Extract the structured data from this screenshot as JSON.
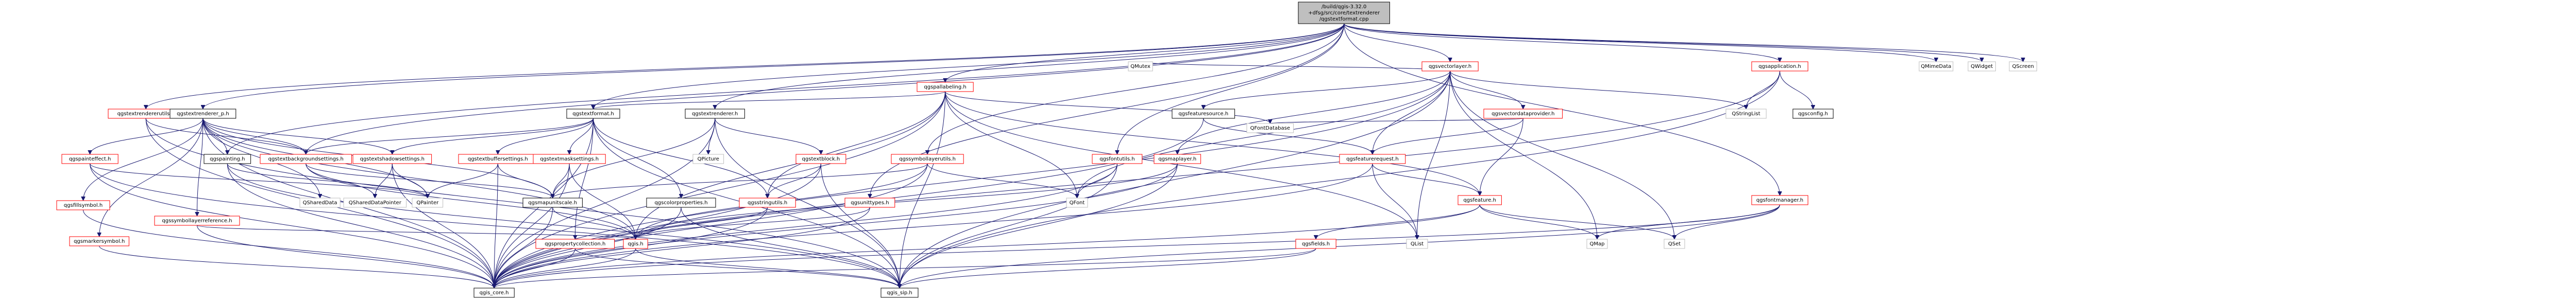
{
  "diagram": {
    "root": {
      "id": "root",
      "lines": [
        "/build/qgis-3.32.0",
        "+dfsg/src/core/textrenderer",
        "/qgstextformat.cpp"
      ],
      "kind": "selected"
    },
    "nodes": [
      {
        "id": "qgstextrendererutils",
        "lines": [
          "qgstextrendererutils.h"
        ],
        "kind": "red"
      },
      {
        "id": "qgstextrenderer_p",
        "lines": [
          "qgstextrenderer_p.h"
        ],
        "kind": "plain"
      },
      {
        "id": "qgstextformat_h",
        "lines": [
          "qgstextformat.h"
        ],
        "kind": "plain"
      },
      {
        "id": "qgstextrenderer_h",
        "lines": [
          "qgstextrenderer.h"
        ],
        "kind": "plain"
      },
      {
        "id": "qgspallabeling",
        "lines": [
          "qgspallabeling.h"
        ],
        "kind": "red"
      },
      {
        "id": "qgsvectorlayer",
        "lines": [
          "qgsvectorlayer.h"
        ],
        "kind": "red"
      },
      {
        "id": "qgsapplication",
        "lines": [
          "qgsapplication.h"
        ],
        "kind": "red"
      },
      {
        "id": "qgspainteffect",
        "lines": [
          "qgspainteffect.h"
        ],
        "kind": "red"
      },
      {
        "id": "qgsfillsymbol",
        "lines": [
          "qgsfillsymbol.h"
        ],
        "kind": "red"
      },
      {
        "id": "qgsmarkersymbol",
        "lines": [
          "qgsmarkersymbol.h"
        ],
        "kind": "red"
      },
      {
        "id": "qgspainting",
        "lines": [
          "qgspainting.h"
        ],
        "kind": "plain"
      },
      {
        "id": "qgssymbollayerreference",
        "lines": [
          "qgssymbollayerreference.h"
        ],
        "kind": "red"
      },
      {
        "id": "qgstextbackgroundsettings",
        "lines": [
          "qgstextbackgroundsettings.h"
        ],
        "kind": "red"
      },
      {
        "id": "qgstextshadowsettings",
        "lines": [
          "qgstextshadowsettings.h"
        ],
        "kind": "red"
      },
      {
        "id": "qgstextbuffersettings",
        "lines": [
          "qgstextbuffersettings.h"
        ],
        "kind": "red"
      },
      {
        "id": "qgstextmasksettings",
        "lines": [
          "qgstextmasksettings.h"
        ],
        "kind": "red"
      },
      {
        "id": "qgscoordinatetransform",
        "lines": [
          "QPicture"
        ],
        "kind": "grey"
      },
      {
        "id": "qgstextblock",
        "lines": [
          "qgstextblock.h"
        ],
        "kind": "red"
      },
      {
        "id": "qgssymbollayerutils",
        "lines": [
          "qgssymbollayerutils.h"
        ],
        "kind": "red"
      },
      {
        "id": "qgsfontutils",
        "lines": [
          "qgsfontutils.h"
        ],
        "kind": "red"
      },
      {
        "id": "qgsmaplayer",
        "lines": [
          "qgsmaplayer.h"
        ],
        "kind": "red"
      },
      {
        "id": "qgsfeaturesource",
        "lines": [
          "qgsfeaturesource.h"
        ],
        "kind": "plain"
      },
      {
        "id": "qgsvectordataprovider",
        "lines": [
          "qgsvectordataprovider.h"
        ],
        "kind": "red"
      },
      {
        "id": "qgsfeaturerequest",
        "lines": [
          "qgsfeaturerequest.h"
        ],
        "kind": "red"
      },
      {
        "id": "qgsfeature",
        "lines": [
          "qgsfeature.h"
        ],
        "kind": "red"
      },
      {
        "id": "qgsfontmanager",
        "lines": [
          "qgsfontmanager.h"
        ],
        "kind": "red"
      },
      {
        "id": "qgsconfig",
        "lines": [
          "qgsconfig.h"
        ],
        "kind": "plain"
      },
      {
        "id": "qgscoreproperties",
        "lines": [
          "qgscolorproperties.h"
        ],
        "kind": "plain"
      },
      {
        "id": "qgsmapunitscale",
        "lines": [
          "qgsmapunitscale.h"
        ],
        "kind": "plain"
      },
      {
        "id": "qgsstringutils",
        "lines": [
          "qgsstringutils.h"
        ],
        "kind": "red"
      },
      {
        "id": "qgsunittypes",
        "lines": [
          "qgsunittypes.h"
        ],
        "kind": "red"
      },
      {
        "id": "qgspropertycollection",
        "lines": [
          "qgspropertycollection.h"
        ],
        "kind": "red"
      },
      {
        "id": "qgsfields",
        "lines": [
          "qgsfields.h"
        ],
        "kind": "red"
      },
      {
        "id": "qgis_h",
        "lines": [
          "qgis.h"
        ],
        "kind": "red"
      },
      {
        "id": "qgis_core",
        "lines": [
          "qgis_core.h"
        ],
        "kind": "plain"
      },
      {
        "id": "qgis_sip",
        "lines": [
          "qgis_sip.h"
        ],
        "kind": "plain"
      },
      {
        "id": "QSharedData",
        "lines": [
          "QSharedData"
        ],
        "kind": "grey"
      },
      {
        "id": "QSharedDataPointer",
        "lines": [
          "QSharedDataPointer"
        ],
        "kind": "grey"
      },
      {
        "id": "QPainter",
        "lines": [
          "QPainter"
        ],
        "kind": "grey"
      },
      {
        "id": "QFont",
        "lines": [
          "QFont"
        ],
        "kind": "grey"
      },
      {
        "id": "QFontDatabase",
        "lines": [
          "QFontDatabase"
        ],
        "kind": "grey"
      },
      {
        "id": "QMutex",
        "lines": [
          "QMutex"
        ],
        "kind": "grey"
      },
      {
        "id": "QStringList",
        "lines": [
          "QStringList"
        ],
        "kind": "grey"
      },
      {
        "id": "QMimeData",
        "lines": [
          "QMimeData"
        ],
        "kind": "grey"
      },
      {
        "id": "QWidget",
        "lines": [
          "QWidget"
        ],
        "kind": "grey"
      },
      {
        "id": "QScreen",
        "lines": [
          "QScreen"
        ],
        "kind": "grey"
      },
      {
        "id": "QList",
        "lines": [
          "QList"
        ],
        "kind": "grey"
      },
      {
        "id": "QMap",
        "lines": [
          "QMap"
        ],
        "kind": "grey"
      },
      {
        "id": "QSet",
        "lines": [
          "QSet"
        ],
        "kind": "grey"
      }
    ],
    "edges": [
      [
        "root",
        "qgstextrendererutils"
      ],
      [
        "root",
        "qgstextrenderer_p"
      ],
      [
        "root",
        "qgstextformat_h"
      ],
      [
        "root",
        "qgstextrenderer_h"
      ],
      [
        "root",
        "qgspallabeling"
      ],
      [
        "root",
        "qgsvectorlayer"
      ],
      [
        "root",
        "qgsapplication"
      ],
      [
        "root",
        "qgsfontutils"
      ],
      [
        "root",
        "qgsfontmanager"
      ],
      [
        "root",
        "QMimeData"
      ],
      [
        "root",
        "QWidget"
      ],
      [
        "root",
        "QScreen"
      ],
      [
        "root",
        "qgsunittypes"
      ],
      [
        "root",
        "qgspainting"
      ],
      [
        "root",
        "qgstextbackgroundsettings"
      ],
      [
        "root",
        "qgssymbollayerutils"
      ],
      [
        "qgstextrendererutils",
        "qgis_core"
      ],
      [
        "qgstextrendererutils",
        "qgis_sip"
      ],
      [
        "qgstextrendererutils",
        "qgstextbackgroundsettings"
      ],
      [
        "qgstextrenderer_p",
        "qgspainteffect"
      ],
      [
        "qgstextrenderer_p",
        "qgsfillsymbol"
      ],
      [
        "qgstextrenderer_p",
        "qgsmarkersymbol"
      ],
      [
        "qgstextrenderer_p",
        "qgspainting"
      ],
      [
        "qgstextrenderer_p",
        "qgssymbollayerreference"
      ],
      [
        "qgstextrenderer_p",
        "qgstextbackgroundsettings"
      ],
      [
        "qgstextrenderer_p",
        "qgstextshadowsettings"
      ],
      [
        "qgstextrenderer_p",
        "qgsmapunitscale"
      ],
      [
        "qgstextrenderer_p",
        "QSharedData"
      ],
      [
        "qgstextrenderer_p",
        "qgis_core"
      ],
      [
        "qgstextrenderer_p",
        "qgis_h"
      ],
      [
        "qgstextrenderer_p",
        "QPainter"
      ],
      [
        "qgstextformat_h",
        "qgstextbuffersettings"
      ],
      [
        "qgstextformat_h",
        "qgstextbackgroundsettings"
      ],
      [
        "qgstextformat_h",
        "qgstextshadowsettings"
      ],
      [
        "qgstextformat_h",
        "qgstextmasksettings"
      ],
      [
        "qgstextformat_h",
        "qgsstringutils"
      ],
      [
        "qgstextformat_h",
        "qgspropertycollection"
      ],
      [
        "qgstextformat_h",
        "qgscoreproperties"
      ],
      [
        "qgstextformat_h",
        "qgis_sip"
      ],
      [
        "qgstextformat_h",
        "qgis_core"
      ],
      [
        "qgstextrenderer_h",
        "qgstextblock"
      ],
      [
        "qgstextrenderer_h",
        "qgscoordinatetransform"
      ],
      [
        "qgstextrenderer_h",
        "qgsmapunitscale"
      ],
      [
        "qgstextrenderer_h",
        "qgis_sip"
      ],
      [
        "qgstextrenderer_h",
        "qgis_core"
      ],
      [
        "qgspallabeling",
        "qgstextformat_h"
      ],
      [
        "qgspallabeling",
        "qgsfeature"
      ],
      [
        "qgspallabeling",
        "qgsstringutils"
      ],
      [
        "qgspallabeling",
        "QFont"
      ],
      [
        "qgspallabeling",
        "QFontDatabase"
      ],
      [
        "qgspallabeling",
        "qgis_h"
      ],
      [
        "qgspallabeling",
        "qgis_core"
      ],
      [
        "qgspallabeling",
        "qgis_sip"
      ],
      [
        "qgspallabeling",
        "QList"
      ],
      [
        "qgsvectorlayer",
        "qgsmaplayer"
      ],
      [
        "qgsvectorlayer",
        "qgsfeaturesource"
      ],
      [
        "qgsvectorlayer",
        "qgsvectordataprovider"
      ],
      [
        "qgsvectorlayer",
        "qgsfeaturerequest"
      ],
      [
        "qgsvectorlayer",
        "QMutex"
      ],
      [
        "qgsvectorlayer",
        "QStringList"
      ],
      [
        "qgsvectorlayer",
        "QFont"
      ],
      [
        "qgsvectorlayer",
        "qgis_core"
      ],
      [
        "qgsvectorlayer",
        "qgis_sip"
      ],
      [
        "qgsvectorlayer",
        "QSet"
      ],
      [
        "qgsvectorlayer",
        "QList"
      ],
      [
        "qgsvectorlayer",
        "QMap"
      ],
      [
        "qgsapplication",
        "qgsconfig"
      ],
      [
        "qgsapplication",
        "QStringList"
      ],
      [
        "qgsapplication",
        "qgis_core"
      ],
      [
        "qgsapplication",
        "qgis_sip"
      ],
      [
        "qgspainteffect",
        "QPainter"
      ],
      [
        "qgspainteffect",
        "qgis_core"
      ],
      [
        "qgspainteffect",
        "qgis_sip"
      ],
      [
        "qgsfillsymbol",
        "qgis_core"
      ],
      [
        "qgsmarkersymbol",
        "qgis_core"
      ],
      [
        "qgspainting",
        "QPainter"
      ],
      [
        "qgspainting",
        "qgis_core"
      ],
      [
        "qgspainting",
        "qgis_sip"
      ],
      [
        "qgssymbollayerreference",
        "qgis_h"
      ],
      [
        "qgssymbollayerreference",
        "qgis_core"
      ],
      [
        "qgstextbackgroundsettings",
        "QSharedDataPointer"
      ],
      [
        "qgstextbackgroundsettings",
        "qgsmapunitscale"
      ],
      [
        "qgstextbackgroundsettings",
        "qgis_h"
      ],
      [
        "qgstextshadowsettings",
        "QSharedDataPointer"
      ],
      [
        "qgstextshadowsettings",
        "QPainter"
      ],
      [
        "qgstextshadowsettings",
        "qgis_core"
      ],
      [
        "qgstextbuffersettings",
        "qgsmapunitscale"
      ],
      [
        "qgstextbuffersettings",
        "QPainter"
      ],
      [
        "qgstextbuffersettings",
        "qgis_core"
      ],
      [
        "qgstextmasksettings",
        "qgsmapunitscale"
      ],
      [
        "qgstextmasksettings",
        "qgis_core"
      ],
      [
        "qgstextmasksettings",
        "qgis_h"
      ],
      [
        "qgstextblock",
        "qgsstringutils"
      ],
      [
        "qgstextblock",
        "qgis_core"
      ],
      [
        "qgstextblock",
        "qgis_sip"
      ],
      [
        "qgssymbollayerutils",
        "qgsmapunitscale"
      ],
      [
        "qgssymbollayerutils",
        "QFont"
      ],
      [
        "qgssymbollayerutils",
        "qgis_core"
      ],
      [
        "qgssymbollayerutils",
        "qgis_h"
      ],
      [
        "qgsfontutils",
        "QFont"
      ],
      [
        "qgsfontutils",
        "qgis_core"
      ],
      [
        "qgsfontutils",
        "qgis_sip"
      ],
      [
        "qgsmaplayer",
        "qgis_h"
      ],
      [
        "qgsmaplayer",
        "qgis_core"
      ],
      [
        "qgsmaplayer",
        "qgis_sip"
      ],
      [
        "qgsfeaturesource",
        "qgsfeaturerequest"
      ],
      [
        "qgsfeaturesource",
        "qgis_core"
      ],
      [
        "qgsvectordataprovider",
        "qgsfeaturerequest"
      ],
      [
        "qgsvectordataprovider",
        "qgsfeature"
      ],
      [
        "qgsvectordataprovider",
        "QFontDatabase"
      ],
      [
        "qgsfeaturerequest",
        "qgsfeature"
      ],
      [
        "qgsfeaturerequest",
        "qgis_core"
      ],
      [
        "qgsfeaturerequest",
        "QList"
      ],
      [
        "qgsfeature",
        "qgsfields"
      ],
      [
        "qgsfeature",
        "qgis_core"
      ],
      [
        "qgsfeature",
        "QMap"
      ],
      [
        "qgsfeature",
        "QSet"
      ],
      [
        "qgsfontmanager",
        "QMap"
      ],
      [
        "qgsfontmanager",
        "QSet"
      ],
      [
        "qgsfontmanager",
        "qgis_core"
      ],
      [
        "qgsfontmanager",
        "qgis_sip"
      ],
      [
        "qgscoreproperties",
        "qgis_core"
      ],
      [
        "qgscoreproperties",
        "qgis_sip"
      ],
      [
        "qgsmapunitscale",
        "qgis_core"
      ],
      [
        "qgsmapunitscale",
        "qgis_h"
      ],
      [
        "qgsstringutils",
        "qgis_core"
      ],
      [
        "qgsstringutils",
        "qgis_h"
      ],
      [
        "qgsunittypes",
        "qgis_core"
      ],
      [
        "qgsunittypes",
        "qgis_h"
      ],
      [
        "qgspropertycollection",
        "qgis_core"
      ],
      [
        "qgspropertycollection",
        "qgis_sip"
      ],
      [
        "qgsfields",
        "qgis_core"
      ],
      [
        "qgsfields",
        "qgis_sip"
      ],
      [
        "qgis_h",
        "qgis_core"
      ],
      [
        "qgis_h",
        "qgis_sip"
      ]
    ]
  }
}
